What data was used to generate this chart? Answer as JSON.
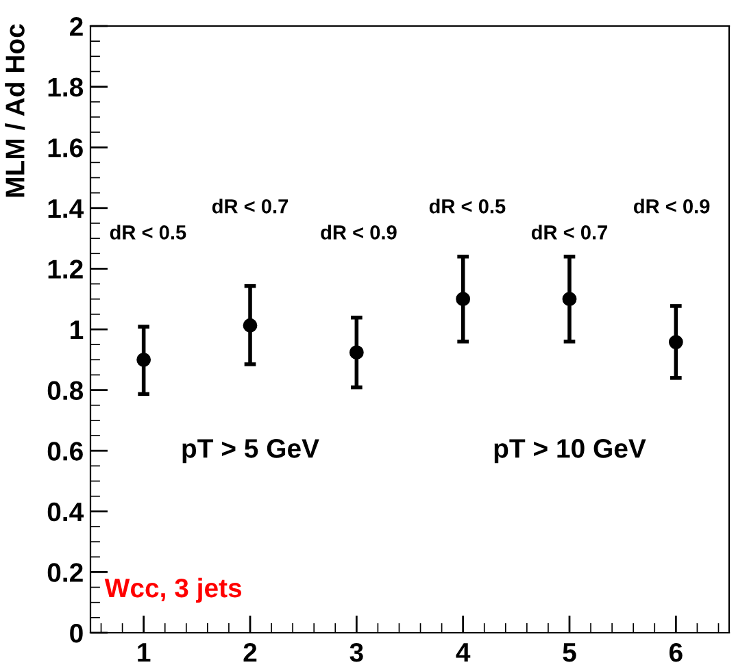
{
  "chart_data": {
    "type": "scatter",
    "ylabel": "MLM / Ad Hoc",
    "x": [
      1,
      2,
      3,
      4,
      5,
      6
    ],
    "series": [
      {
        "color": "#000000",
        "marker": "circle",
        "values": [
          0.9,
          1.013,
          0.924,
          1.1,
          1.1,
          0.958
        ],
        "errors": [
          [
            0.787,
            1.009
          ],
          [
            0.885,
            1.143
          ],
          [
            0.809,
            1.039
          ],
          [
            0.96,
            1.24
          ],
          [
            0.96,
            1.24
          ],
          [
            0.84,
            1.077
          ]
        ]
      }
    ],
    "xlim": [
      0.5,
      6.5
    ],
    "xticks": [
      1,
      2,
      3,
      4,
      5,
      6
    ],
    "ylim": [
      0,
      2
    ],
    "yticks": [
      0,
      0.2,
      0.4,
      0.6,
      0.8,
      1,
      1.2,
      1.4,
      1.6,
      1.8,
      2
    ],
    "grid": false,
    "annotations": [
      "dR < 0.5",
      "dR < 0.7",
      "dR < 0.9",
      "dR < 0.5",
      "dR < 0.7",
      "dR < 0.9",
      "pT > 5 GeV",
      "pT > 10 GeV",
      "Wcc, 3 jets"
    ]
  }
}
